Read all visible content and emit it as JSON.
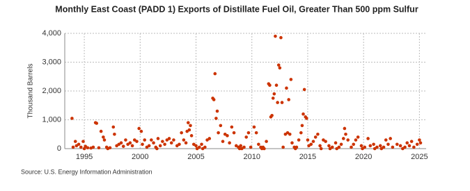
{
  "chart_data": {
    "type": "scatter",
    "title": "Monthly East Coast (PADD 1) Exports of Distillate Fuel Oil, Greater Than 500 ppm Sulfur",
    "y_label": "Thousand Barrels",
    "source": "Source: U.S. Energy Information Administration",
    "x": [
      1993.9,
      1994.0,
      1994.2,
      1994.3,
      1994.5,
      1994.7,
      1994.9,
      1995.0,
      1995.1,
      1995.3,
      1995.6,
      1995.8,
      1996.0,
      1996.1,
      1996.3,
      1996.5,
      1996.7,
      1996.8,
      1997.0,
      1997.1,
      1997.3,
      1997.6,
      1997.7,
      1997.9,
      1998.1,
      1998.3,
      1998.5,
      1998.7,
      1998.9,
      1999.1,
      1999.3,
      1999.5,
      1999.7,
      1999.9,
      2000.1,
      2000.2,
      2000.4,
      2000.6,
      2000.8,
      2001.0,
      2001.2,
      2001.4,
      2001.5,
      2001.6,
      2001.8,
      2002.0,
      2002.2,
      2002.4,
      2002.6,
      2002.8,
      2003.0,
      2003.3,
      2003.5,
      2003.7,
      2003.9,
      2004.1,
      2004.2,
      2004.3,
      2004.4,
      2004.5,
      2004.6,
      2004.8,
      2005.0,
      2005.1,
      2005.3,
      2005.5,
      2005.6,
      2005.8,
      2006.0,
      2006.2,
      2006.5,
      2006.6,
      2006.7,
      2006.8,
      2006.9,
      2007.0,
      2007.2,
      2007.4,
      2007.6,
      2007.8,
      2008.0,
      2008.2,
      2008.4,
      2008.6,
      2008.8,
      2008.9,
      2009.0,
      2009.1,
      2009.3,
      2009.5,
      2009.7,
      2009.9,
      2010.2,
      2010.4,
      2010.6,
      2010.8,
      2010.9,
      2011.0,
      2011.1,
      2011.3,
      2011.5,
      2011.6,
      2011.7,
      2011.8,
      2011.9,
      2012.0,
      2012.1,
      2012.2,
      2012.3,
      2012.4,
      2012.5,
      2012.6,
      2012.7,
      2012.8,
      2013.0,
      2013.1,
      2013.2,
      2013.3,
      2013.4,
      2013.5,
      2013.6,
      2013.8,
      2013.9,
      2014.0,
      2014.2,
      2014.4,
      2014.5,
      2014.6,
      2014.7,
      2014.8,
      2014.9,
      2015.0,
      2015.1,
      2015.3,
      2015.5,
      2015.7,
      2015.9,
      2016.1,
      2016.2,
      2016.4,
      2016.6,
      2016.9,
      2017.0,
      2017.2,
      2017.5,
      2017.6,
      2017.8,
      2018.0,
      2018.2,
      2018.3,
      2018.4,
      2018.6,
      2018.9,
      2019.1,
      2019.3,
      2019.5,
      2019.8,
      2019.9,
      2020.1,
      2020.4,
      2020.6,
      2020.9,
      2021.0,
      2021.2,
      2021.5,
      2021.6,
      2021.8,
      2022.0,
      2022.2,
      2022.4,
      2022.6,
      2023.0,
      2023.3,
      2023.5,
      2023.7,
      2023.9,
      2024.1,
      2024.3,
      2024.5,
      2024.8,
      2025.0,
      2025.1
    ],
    "series": [
      {
        "name": "Exports",
        "color": "#cc3300",
        "values": [
          1050,
          50,
          250,
          100,
          150,
          50,
          250,
          0,
          80,
          30,
          20,
          50,
          900,
          880,
          30,
          600,
          400,
          300,
          50,
          0,
          30,
          750,
          500,
          100,
          150,
          200,
          80,
          300,
          150,
          200,
          100,
          300,
          250,
          700,
          600,
          150,
          300,
          50,
          100,
          300,
          200,
          50,
          0,
          350,
          100,
          250,
          150,
          300,
          350,
          200,
          300,
          100,
          150,
          550,
          300,
          200,
          600,
          900,
          650,
          800,
          450,
          150,
          100,
          0,
          50,
          150,
          0,
          50,
          300,
          350,
          1750,
          1700,
          2600,
          1050,
          1300,
          550,
          800,
          250,
          500,
          450,
          200,
          750,
          550,
          100,
          50,
          0,
          100,
          0,
          50,
          400,
          550,
          50,
          750,
          550,
          150,
          50,
          0,
          50,
          0,
          250,
          2250,
          2200,
          1100,
          1150,
          1750,
          1900,
          3900,
          2200,
          1600,
          2900,
          2800,
          3850,
          1600,
          50,
          500,
          2100,
          550,
          1700,
          500,
          2400,
          200,
          50,
          0,
          50,
          300,
          550,
          800,
          1200,
          2050,
          1100,
          1050,
          300,
          100,
          150,
          250,
          400,
          500,
          100,
          0,
          300,
          250,
          100,
          0,
          50,
          200,
          0,
          50,
          150,
          350,
          700,
          500,
          300,
          50,
          150,
          300,
          400,
          100,
          0,
          50,
          350,
          100,
          150,
          0,
          50,
          100,
          0,
          50,
          300,
          150,
          350,
          50,
          150,
          100,
          0,
          50,
          200,
          100,
          250,
          50,
          150,
          300,
          200
        ]
      }
    ],
    "xlim": [
      1993.25,
      2025.6
    ],
    "xticks": [
      1995,
      2000,
      2005,
      2010,
      2015,
      2020,
      2025
    ],
    "ylim": [
      0,
      4000
    ],
    "yticks": [
      0,
      {
        "value": 1000,
        "label": "1,000"
      },
      {
        "value": 2000,
        "label": "2,000"
      },
      {
        "value": 3000,
        "label": "3,000"
      },
      {
        "value": 4000,
        "label": "4,000"
      }
    ],
    "grid": true
  }
}
